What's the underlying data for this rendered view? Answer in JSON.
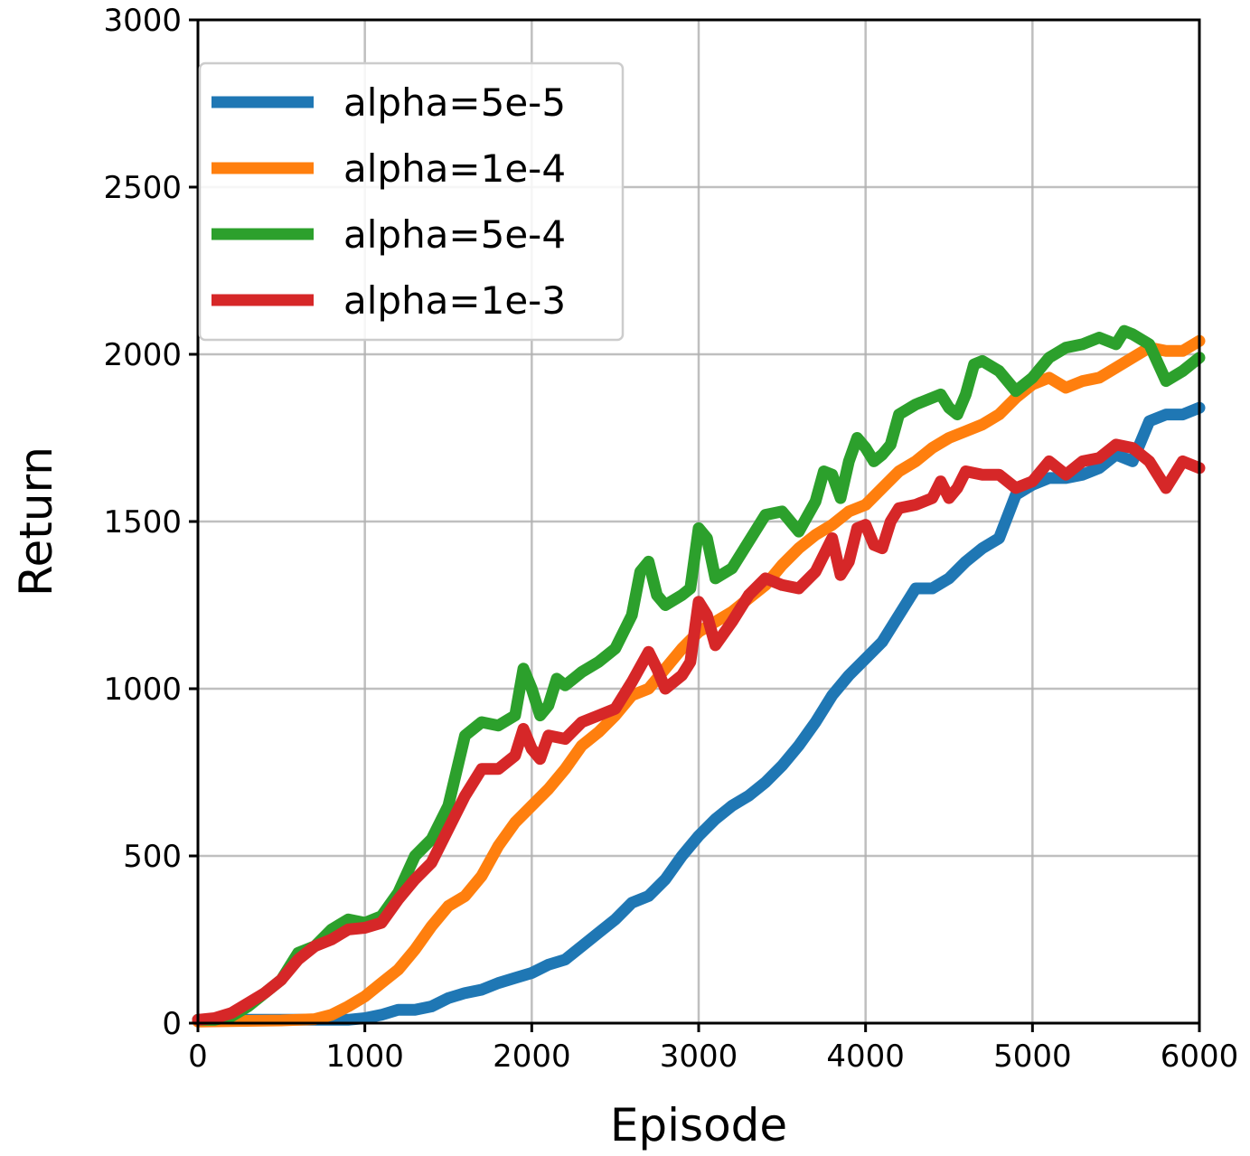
{
  "chart_data": {
    "type": "line",
    "title": "",
    "xlabel": "Episode",
    "ylabel": "Return",
    "xlim": [
      0,
      6000
    ],
    "ylim": [
      0,
      3000
    ],
    "xticks": [
      "0",
      "1000",
      "2000",
      "3000",
      "4000",
      "5000",
      "6000"
    ],
    "yticks": [
      "0",
      "500",
      "1000",
      "1500",
      "2000",
      "2500",
      "3000"
    ],
    "grid": true,
    "legend_position": "top-left",
    "series": [
      {
        "name": "alpha=5e-5",
        "color": "#1f77b4",
        "points": [
          [
            0,
            10
          ],
          [
            500,
            10
          ],
          [
            900,
            10
          ],
          [
            1000,
            15
          ],
          [
            1100,
            25
          ],
          [
            1200,
            40
          ],
          [
            1300,
            40
          ],
          [
            1400,
            50
          ],
          [
            1500,
            75
          ],
          [
            1600,
            90
          ],
          [
            1700,
            100
          ],
          [
            1800,
            120
          ],
          [
            1900,
            135
          ],
          [
            2000,
            150
          ],
          [
            2100,
            175
          ],
          [
            2200,
            190
          ],
          [
            2300,
            230
          ],
          [
            2400,
            270
          ],
          [
            2500,
            310
          ],
          [
            2600,
            360
          ],
          [
            2700,
            380
          ],
          [
            2800,
            430
          ],
          [
            2900,
            500
          ],
          [
            3000,
            560
          ],
          [
            3100,
            610
          ],
          [
            3200,
            650
          ],
          [
            3300,
            680
          ],
          [
            3400,
            720
          ],
          [
            3500,
            770
          ],
          [
            3600,
            830
          ],
          [
            3700,
            900
          ],
          [
            3800,
            980
          ],
          [
            3900,
            1040
          ],
          [
            4000,
            1090
          ],
          [
            4100,
            1140
          ],
          [
            4200,
            1220
          ],
          [
            4300,
            1300
          ],
          [
            4400,
            1300
          ],
          [
            4500,
            1330
          ],
          [
            4600,
            1380
          ],
          [
            4700,
            1420
          ],
          [
            4800,
            1450
          ],
          [
            4900,
            1580
          ],
          [
            5000,
            1610
          ],
          [
            5100,
            1630
          ],
          [
            5200,
            1630
          ],
          [
            5300,
            1640
          ],
          [
            5400,
            1660
          ],
          [
            5500,
            1700
          ],
          [
            5600,
            1680
          ],
          [
            5700,
            1800
          ],
          [
            5800,
            1820
          ],
          [
            5900,
            1820
          ],
          [
            6000,
            1840
          ]
        ]
      },
      {
        "name": "alpha=1e-4",
        "color": "#ff7f0e",
        "points": [
          [
            0,
            5
          ],
          [
            500,
            8
          ],
          [
            700,
            12
          ],
          [
            800,
            25
          ],
          [
            900,
            50
          ],
          [
            1000,
            80
          ],
          [
            1100,
            120
          ],
          [
            1200,
            160
          ],
          [
            1300,
            220
          ],
          [
            1400,
            290
          ],
          [
            1500,
            350
          ],
          [
            1600,
            380
          ],
          [
            1700,
            440
          ],
          [
            1800,
            530
          ],
          [
            1900,
            600
          ],
          [
            2000,
            650
          ],
          [
            2100,
            700
          ],
          [
            2200,
            760
          ],
          [
            2300,
            830
          ],
          [
            2400,
            870
          ],
          [
            2500,
            920
          ],
          [
            2600,
            980
          ],
          [
            2700,
            1000
          ],
          [
            2800,
            1060
          ],
          [
            2900,
            1120
          ],
          [
            3000,
            1170
          ],
          [
            3100,
            1200
          ],
          [
            3200,
            1230
          ],
          [
            3300,
            1270
          ],
          [
            3400,
            1310
          ],
          [
            3500,
            1370
          ],
          [
            3600,
            1420
          ],
          [
            3700,
            1460
          ],
          [
            3800,
            1490
          ],
          [
            3900,
            1530
          ],
          [
            4000,
            1550
          ],
          [
            4100,
            1600
          ],
          [
            4200,
            1650
          ],
          [
            4300,
            1680
          ],
          [
            4400,
            1720
          ],
          [
            4500,
            1750
          ],
          [
            4600,
            1770
          ],
          [
            4700,
            1790
          ],
          [
            4800,
            1820
          ],
          [
            4900,
            1870
          ],
          [
            5000,
            1910
          ],
          [
            5100,
            1930
          ],
          [
            5200,
            1900
          ],
          [
            5300,
            1920
          ],
          [
            5400,
            1930
          ],
          [
            5500,
            1960
          ],
          [
            5600,
            1990
          ],
          [
            5700,
            2020
          ],
          [
            5800,
            2010
          ],
          [
            5900,
            2010
          ],
          [
            6000,
            2040
          ]
        ]
      },
      {
        "name": "alpha=5e-4",
        "color": "#2ca02c",
        "points": [
          [
            0,
            10
          ],
          [
            100,
            10
          ],
          [
            200,
            20
          ],
          [
            300,
            50
          ],
          [
            400,
            90
          ],
          [
            500,
            130
          ],
          [
            600,
            210
          ],
          [
            700,
            230
          ],
          [
            800,
            280
          ],
          [
            900,
            310
          ],
          [
            1000,
            300
          ],
          [
            1100,
            320
          ],
          [
            1200,
            390
          ],
          [
            1300,
            500
          ],
          [
            1400,
            550
          ],
          [
            1500,
            650
          ],
          [
            1600,
            860
          ],
          [
            1700,
            900
          ],
          [
            1800,
            890
          ],
          [
            1900,
            920
          ],
          [
            1950,
            1060
          ],
          [
            2000,
            1000
          ],
          [
            2050,
            920
          ],
          [
            2100,
            950
          ],
          [
            2150,
            1030
          ],
          [
            2200,
            1010
          ],
          [
            2300,
            1050
          ],
          [
            2400,
            1080
          ],
          [
            2500,
            1120
          ],
          [
            2600,
            1220
          ],
          [
            2650,
            1350
          ],
          [
            2700,
            1380
          ],
          [
            2750,
            1280
          ],
          [
            2800,
            1250
          ],
          [
            2900,
            1280
          ],
          [
            2950,
            1300
          ],
          [
            3000,
            1480
          ],
          [
            3050,
            1450
          ],
          [
            3100,
            1330
          ],
          [
            3200,
            1360
          ],
          [
            3300,
            1440
          ],
          [
            3400,
            1520
          ],
          [
            3500,
            1530
          ],
          [
            3600,
            1470
          ],
          [
            3700,
            1560
          ],
          [
            3750,
            1650
          ],
          [
            3800,
            1640
          ],
          [
            3850,
            1570
          ],
          [
            3900,
            1680
          ],
          [
            3950,
            1750
          ],
          [
            4000,
            1720
          ],
          [
            4050,
            1680
          ],
          [
            4100,
            1700
          ],
          [
            4150,
            1730
          ],
          [
            4200,
            1820
          ],
          [
            4300,
            1850
          ],
          [
            4400,
            1870
          ],
          [
            4450,
            1880
          ],
          [
            4500,
            1840
          ],
          [
            4550,
            1820
          ],
          [
            4600,
            1880
          ],
          [
            4650,
            1970
          ],
          [
            4700,
            1980
          ],
          [
            4800,
            1950
          ],
          [
            4900,
            1890
          ],
          [
            5000,
            1930
          ],
          [
            5100,
            1990
          ],
          [
            5200,
            2020
          ],
          [
            5300,
            2030
          ],
          [
            5400,
            2050
          ],
          [
            5500,
            2030
          ],
          [
            5550,
            2070
          ],
          [
            5600,
            2060
          ],
          [
            5700,
            2030
          ],
          [
            5800,
            1920
          ],
          [
            5900,
            1950
          ],
          [
            6000,
            1990
          ]
        ]
      },
      {
        "name": "alpha=1e-3",
        "color": "#d62728",
        "points": [
          [
            0,
            10
          ],
          [
            100,
            15
          ],
          [
            200,
            30
          ],
          [
            300,
            60
          ],
          [
            400,
            90
          ],
          [
            500,
            130
          ],
          [
            600,
            190
          ],
          [
            700,
            230
          ],
          [
            800,
            250
          ],
          [
            900,
            280
          ],
          [
            1000,
            285
          ],
          [
            1100,
            300
          ],
          [
            1200,
            370
          ],
          [
            1300,
            430
          ],
          [
            1400,
            480
          ],
          [
            1500,
            580
          ],
          [
            1600,
            680
          ],
          [
            1700,
            760
          ],
          [
            1800,
            760
          ],
          [
            1900,
            800
          ],
          [
            1950,
            880
          ],
          [
            2000,
            820
          ],
          [
            2050,
            790
          ],
          [
            2100,
            860
          ],
          [
            2200,
            850
          ],
          [
            2300,
            900
          ],
          [
            2400,
            920
          ],
          [
            2500,
            940
          ],
          [
            2600,
            1020
          ],
          [
            2700,
            1110
          ],
          [
            2750,
            1060
          ],
          [
            2800,
            1000
          ],
          [
            2900,
            1040
          ],
          [
            2950,
            1080
          ],
          [
            3000,
            1260
          ],
          [
            3050,
            1220
          ],
          [
            3100,
            1130
          ],
          [
            3200,
            1200
          ],
          [
            3300,
            1280
          ],
          [
            3400,
            1330
          ],
          [
            3500,
            1310
          ],
          [
            3600,
            1300
          ],
          [
            3700,
            1350
          ],
          [
            3800,
            1450
          ],
          [
            3850,
            1340
          ],
          [
            3900,
            1380
          ],
          [
            3950,
            1480
          ],
          [
            4000,
            1490
          ],
          [
            4050,
            1430
          ],
          [
            4100,
            1420
          ],
          [
            4150,
            1500
          ],
          [
            4200,
            1540
          ],
          [
            4300,
            1550
          ],
          [
            4400,
            1570
          ],
          [
            4450,
            1620
          ],
          [
            4500,
            1570
          ],
          [
            4550,
            1600
          ],
          [
            4600,
            1650
          ],
          [
            4700,
            1640
          ],
          [
            4800,
            1640
          ],
          [
            4900,
            1600
          ],
          [
            5000,
            1620
          ],
          [
            5100,
            1680
          ],
          [
            5200,
            1640
          ],
          [
            5300,
            1680
          ],
          [
            5400,
            1690
          ],
          [
            5500,
            1730
          ],
          [
            5600,
            1720
          ],
          [
            5700,
            1680
          ],
          [
            5800,
            1600
          ],
          [
            5900,
            1680
          ],
          [
            6000,
            1660
          ]
        ]
      }
    ]
  }
}
